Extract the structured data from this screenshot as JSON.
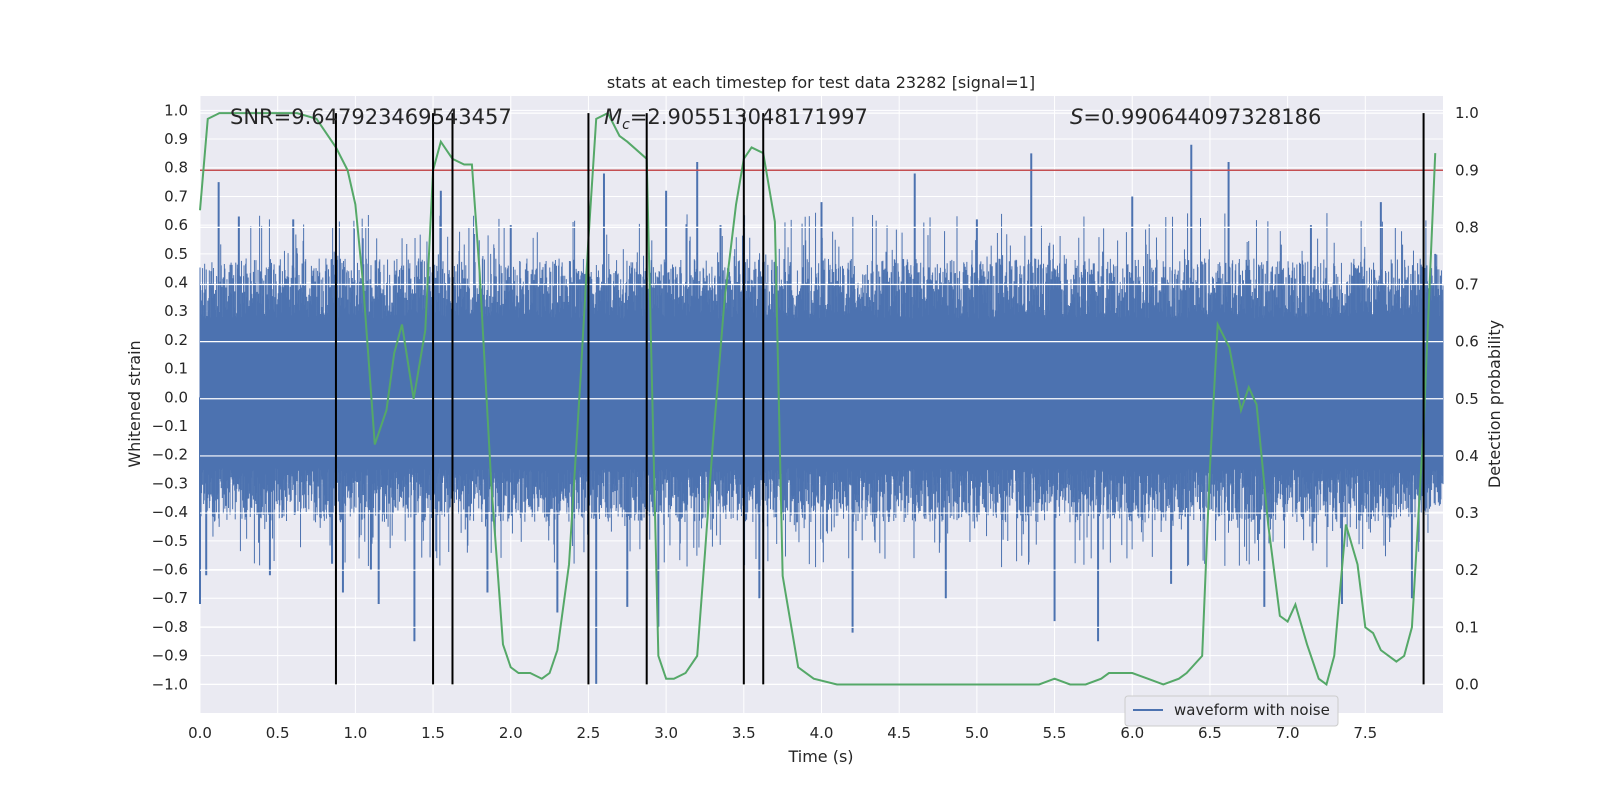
{
  "chart_data": {
    "type": "line",
    "title": "stats at each timestep for test data 23282 [signal=1]",
    "xlabel": "Time (s)",
    "ylabel_left": "Whitened strain",
    "ylabel_right": "Detection probability",
    "xlim": [
      0.0,
      8.0
    ],
    "ylim_left": [
      -1.1,
      1.05
    ],
    "ylim_right": [
      -0.05,
      1.03
    ],
    "x_ticks": [
      "0.0",
      "0.5",
      "1.0",
      "1.5",
      "2.0",
      "2.5",
      "3.0",
      "3.5",
      "4.0",
      "4.5",
      "5.0",
      "5.5",
      "6.0",
      "6.5",
      "7.0",
      "7.5"
    ],
    "x_tick_values": [
      0.0,
      0.5,
      1.0,
      1.5,
      2.0,
      2.5,
      3.0,
      3.5,
      4.0,
      4.5,
      5.0,
      5.5,
      6.0,
      6.5,
      7.0,
      7.5
    ],
    "y_ticks_left": [
      "1.0",
      "0.9",
      "0.8",
      "0.7",
      "0.6",
      "0.5",
      "0.4",
      "0.3",
      "0.2",
      "0.1",
      "0.0",
      "−0.1",
      "−0.2",
      "−0.3",
      "−0.4",
      "−0.5",
      "−0.6",
      "−0.7",
      "−0.8",
      "−0.9",
      "−1.0"
    ],
    "y_tick_values_left": [
      1.0,
      0.9,
      0.8,
      0.7,
      0.6,
      0.5,
      0.4,
      0.3,
      0.2,
      0.1,
      0.0,
      -0.1,
      -0.2,
      -0.3,
      -0.4,
      -0.5,
      -0.6,
      -0.7,
      -0.8,
      -0.9,
      -1.0
    ],
    "y_ticks_right": [
      "1.0",
      "0.9",
      "0.8",
      "0.7",
      "0.6",
      "0.5",
      "0.4",
      "0.3",
      "0.2",
      "0.1",
      "0.0"
    ],
    "y_tick_values_right": [
      1.0,
      0.9,
      0.8,
      0.7,
      0.6,
      0.5,
      0.4,
      0.3,
      0.2,
      0.1,
      0.0
    ],
    "annotations": {
      "snr": "SNR=9.647923469543457",
      "mc_symbol": "M",
      "mc_sub": "c",
      "mc_value": "=2.905513048171997",
      "s_symbol": "S",
      "s_value": "=0.990644097328186"
    },
    "threshold_right": 0.9,
    "vertical_lines_x": [
      0.875,
      1.5,
      1.625,
      2.5,
      2.875,
      3.5,
      3.625,
      7.875
    ],
    "waveform": {
      "name": "waveform with noise",
      "x_range": [
        0.0,
        8.0
      ],
      "envelope_pos": 0.5,
      "envelope_neg": -0.45,
      "spikes": [
        [
          0.0,
          -0.72
        ],
        [
          0.04,
          -0.62
        ],
        [
          0.12,
          0.75
        ],
        [
          0.25,
          0.63
        ],
        [
          0.45,
          -0.62
        ],
        [
          0.6,
          0.62
        ],
        [
          0.85,
          -0.58
        ],
        [
          0.92,
          -0.68
        ],
        [
          1.1,
          -0.6
        ],
        [
          1.15,
          -0.72
        ],
        [
          1.38,
          -0.85
        ],
        [
          1.5,
          -0.7
        ],
        [
          1.55,
          0.72
        ],
        [
          1.85,
          -0.68
        ],
        [
          2.0,
          0.6
        ],
        [
          2.3,
          -0.75
        ],
        [
          2.55,
          -1.0
        ],
        [
          2.6,
          0.78
        ],
        [
          2.75,
          -0.73
        ],
        [
          2.95,
          -0.8
        ],
        [
          3.0,
          0.72
        ],
        [
          3.2,
          0.82
        ],
        [
          3.35,
          0.6
        ],
        [
          3.6,
          -0.7
        ],
        [
          4.0,
          0.68
        ],
        [
          4.2,
          -0.82
        ],
        [
          4.6,
          0.78
        ],
        [
          4.8,
          -0.7
        ],
        [
          5.0,
          0.62
        ],
        [
          5.35,
          0.85
        ],
        [
          5.5,
          -0.78
        ],
        [
          5.78,
          -0.85
        ],
        [
          6.0,
          0.7
        ],
        [
          6.25,
          -0.65
        ],
        [
          6.38,
          0.88
        ],
        [
          6.62,
          0.82
        ],
        [
          6.85,
          -0.73
        ],
        [
          7.15,
          0.6
        ],
        [
          7.35,
          -0.72
        ],
        [
          7.6,
          0.68
        ],
        [
          7.8,
          -0.7
        ],
        [
          7.95,
          0.5
        ]
      ]
    },
    "detection_probability": {
      "x": [
        0.0,
        0.05,
        0.125,
        0.25,
        0.375,
        0.5,
        0.625,
        0.75,
        0.875,
        0.95,
        1.0,
        1.05,
        1.125,
        1.2,
        1.25,
        1.3,
        1.375,
        1.45,
        1.5,
        1.55,
        1.6,
        1.625,
        1.7,
        1.75,
        1.8,
        1.875,
        1.95,
        2.0,
        2.05,
        2.125,
        2.2,
        2.25,
        2.3,
        2.375,
        2.45,
        2.5,
        2.55,
        2.625,
        2.7,
        2.75,
        2.875,
        2.95,
        3.0,
        3.05,
        3.125,
        3.2,
        3.25,
        3.3,
        3.375,
        3.45,
        3.5,
        3.55,
        3.625,
        3.7,
        3.75,
        3.85,
        3.95,
        4.1,
        4.2,
        4.4,
        4.6,
        4.8,
        5.0,
        5.2,
        5.4,
        5.5,
        5.6,
        5.7,
        5.8,
        5.85,
        5.95,
        6.0,
        6.1,
        6.2,
        6.3,
        6.35,
        6.45,
        6.5,
        6.55,
        6.625,
        6.7,
        6.75,
        6.8,
        6.875,
        6.95,
        7.0,
        7.05,
        7.125,
        7.2,
        7.25,
        7.3,
        7.375,
        7.45,
        7.5,
        7.55,
        7.6,
        7.7,
        7.75,
        7.8,
        7.875,
        7.95
      ],
      "y": [
        0.83,
        0.99,
        1.0,
        1.0,
        1.0,
        1.0,
        1.0,
        0.99,
        0.94,
        0.9,
        0.84,
        0.7,
        0.42,
        0.48,
        0.58,
        0.63,
        0.5,
        0.62,
        0.9,
        0.95,
        0.93,
        0.92,
        0.91,
        0.91,
        0.72,
        0.35,
        0.07,
        0.03,
        0.02,
        0.02,
        0.01,
        0.02,
        0.06,
        0.21,
        0.54,
        0.78,
        0.99,
        1.0,
        0.96,
        0.95,
        0.92,
        0.05,
        0.01,
        0.01,
        0.02,
        0.05,
        0.23,
        0.42,
        0.67,
        0.84,
        0.92,
        0.94,
        0.93,
        0.81,
        0.19,
        0.03,
        0.01,
        0.0,
        0.0,
        0.0,
        0.0,
        0.0,
        0.0,
        0.0,
        0.0,
        0.01,
        0.0,
        0.0,
        0.01,
        0.02,
        0.02,
        0.02,
        0.01,
        0.0,
        0.01,
        0.02,
        0.05,
        0.38,
        0.63,
        0.59,
        0.48,
        0.52,
        0.49,
        0.28,
        0.12,
        0.11,
        0.14,
        0.07,
        0.01,
        0.0,
        0.05,
        0.28,
        0.21,
        0.1,
        0.09,
        0.06,
        0.04,
        0.05,
        0.1,
        0.45,
        0.93
      ]
    },
    "legend": {
      "label": "waveform with noise",
      "placement": "lower-right"
    },
    "colors": {
      "waveform": "#4c72b0",
      "probability": "#55a868",
      "threshold": "#c44e52",
      "vlines": "#000000",
      "axes_bg": "#eaeaf2",
      "grid": "#ffffff"
    }
  }
}
